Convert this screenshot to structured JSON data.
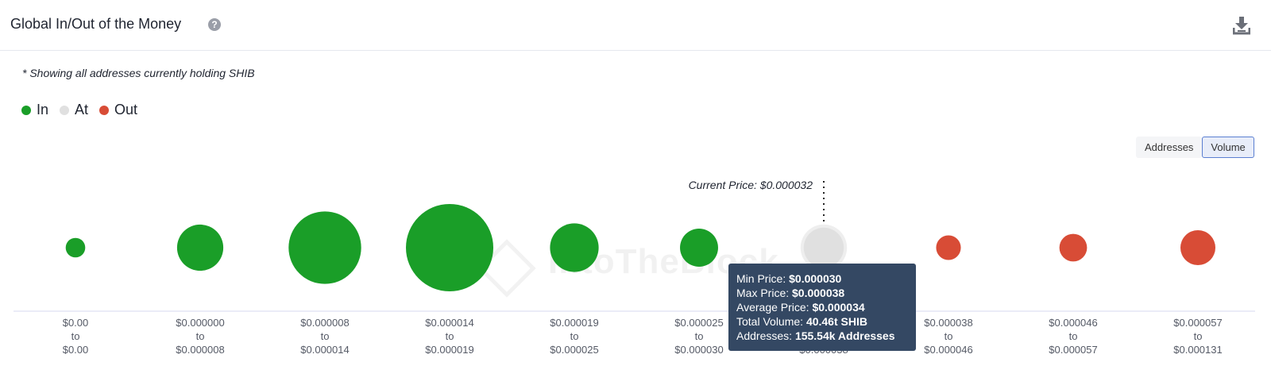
{
  "header": {
    "title": "Global In/Out of the Money",
    "help_icon": "question-circle-icon",
    "download_icon": "download-icon"
  },
  "subtitle": "* Showing all addresses currently holding SHIB",
  "legend": [
    {
      "label": "In",
      "color": "#1a9e28"
    },
    {
      "label": "At",
      "color": "#e0e0e0"
    },
    {
      "label": "Out",
      "color": "#d84c36"
    }
  ],
  "toggle": {
    "addresses_label": "Addresses",
    "volume_label": "Volume",
    "active": "Volume"
  },
  "watermark": "IntoTheBlock",
  "chart_data": {
    "type": "bubble",
    "current_price_label": "Current Price: $0.000032",
    "current_price_index": 6,
    "categories": [
      {
        "from": "$0.00",
        "to": "$0.00"
      },
      {
        "from": "$0.000000",
        "to": "$0.000008"
      },
      {
        "from": "$0.000008",
        "to": "$0.000014"
      },
      {
        "from": "$0.000014",
        "to": "$0.000019"
      },
      {
        "from": "$0.000019",
        "to": "$0.000025"
      },
      {
        "from": "$0.000025",
        "to": "$0.000030"
      },
      {
        "from": "$0.000030",
        "to": "$0.000038"
      },
      {
        "from": "$0.000038",
        "to": "$0.000046"
      },
      {
        "from": "$0.000046",
        "to": "$0.000057"
      },
      {
        "from": "$0.000057",
        "to": "$0.000131"
      }
    ],
    "status": [
      "In",
      "In",
      "In",
      "In",
      "In",
      "In",
      "At",
      "Out",
      "Out",
      "Out"
    ],
    "relative_volume": [
      0.05,
      0.28,
      0.69,
      1.0,
      0.31,
      0.19,
      0.21,
      0.08,
      0.1,
      0.16
    ]
  },
  "tooltip": {
    "min_price_label": "Min Price: ",
    "min_price": "$0.000030",
    "max_price_label": "Max Price: ",
    "max_price": "$0.000038",
    "avg_price_label": "Average Price: ",
    "avg_price": "$0.000034",
    "total_volume_label": "Total Volume: ",
    "total_volume": "40.46t SHIB",
    "addresses_label": "Addresses: ",
    "addresses": "155.54k Addresses"
  }
}
